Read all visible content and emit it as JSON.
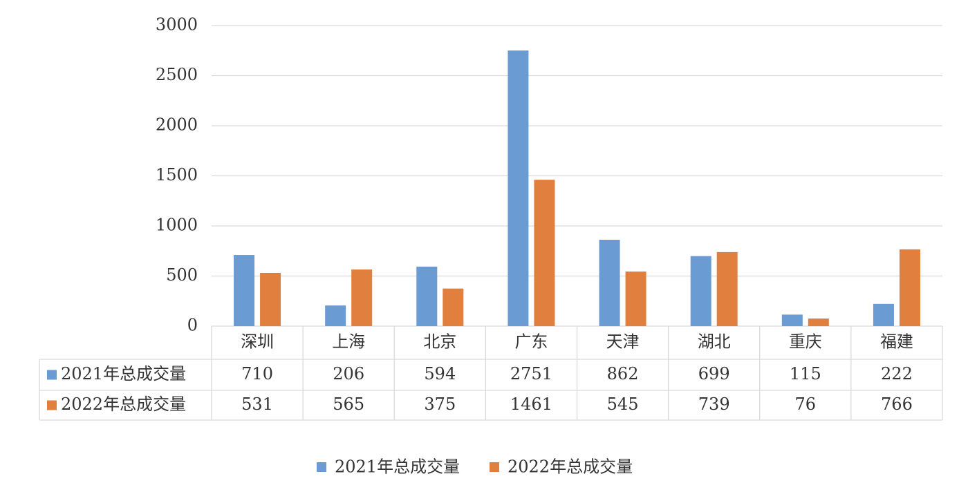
{
  "chart_data": {
    "type": "bar",
    "categories": [
      "深圳",
      "上海",
      "北京",
      "广东",
      "天津",
      "湖北",
      "重庆",
      "福建"
    ],
    "series": [
      {
        "name": "2021年总成交量",
        "color": "#6a9bd3",
        "values": [
          710,
          206,
          594,
          2751,
          862,
          699,
          115,
          222
        ]
      },
      {
        "name": "2022年总成交量",
        "color": "#e07f3e",
        "values": [
          531,
          565,
          375,
          1461,
          545,
          739,
          76,
          766
        ]
      }
    ],
    "ylim": [
      0,
      3000
    ],
    "yticks": [
      0,
      500,
      1000,
      1500,
      2000,
      2500,
      3000
    ],
    "grid": true,
    "legend": "bottom"
  }
}
